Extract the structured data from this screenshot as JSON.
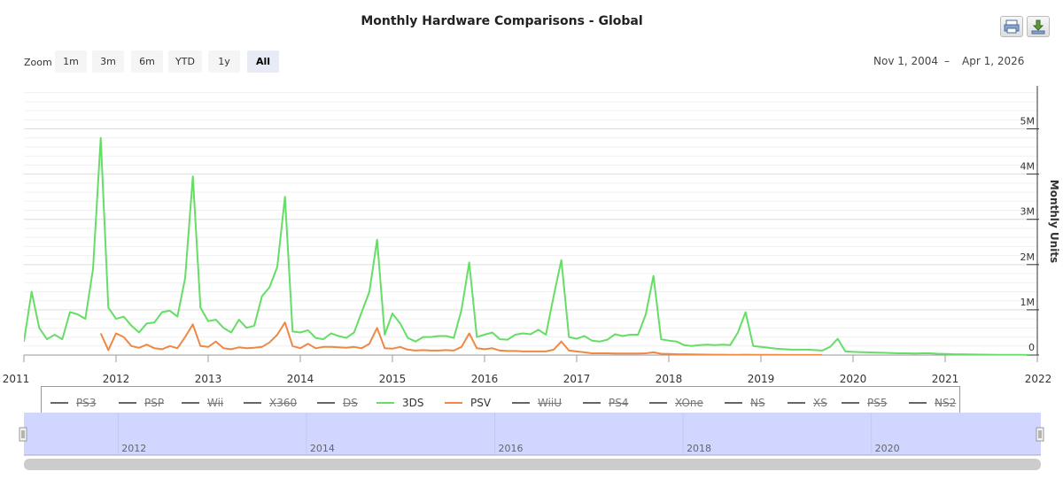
{
  "title": "Monthly Hardware Comparisons - Global",
  "zoom": {
    "label": "Zoom",
    "buttons": [
      "1m",
      "3m",
      "6m",
      "YTD",
      "1y",
      "All"
    ],
    "active": "All"
  },
  "range": {
    "from": "Nov 1, 2004",
    "separator": "–",
    "to": "Apr 1, 2026"
  },
  "export_icons": [
    "print-icon",
    "download-icon"
  ],
  "legend": [
    {
      "name": "PS3",
      "visible": false
    },
    {
      "name": "PSP",
      "visible": false
    },
    {
      "name": "Wii",
      "visible": false
    },
    {
      "name": "X360",
      "visible": false
    },
    {
      "name": "DS",
      "visible": false
    },
    {
      "name": "3DS",
      "visible": true
    },
    {
      "name": "PSV",
      "visible": true
    },
    {
      "name": "WiiU",
      "visible": false
    },
    {
      "name": "PS4",
      "visible": false
    },
    {
      "name": "XOne",
      "visible": false
    },
    {
      "name": "NS",
      "visible": false
    },
    {
      "name": "XS",
      "visible": false
    },
    {
      "name": "PS5",
      "visible": false
    },
    {
      "name": "NS2",
      "visible": false
    }
  ],
  "navigator": {
    "labels": [
      "2012",
      "2014",
      "2016",
      "2018",
      "2020"
    ]
  },
  "colors": {
    "3DS": "#66dd66",
    "PSV": "#ee8844",
    "hidden": "#666666",
    "navigator": "#d0d6ff"
  },
  "chart_data": {
    "type": "line",
    "ylabel": "Monthly Units",
    "y_ticks": [
      "0",
      "1M",
      "2M",
      "3M",
      "4M",
      "5M"
    ],
    "x_ticks": [
      "2011",
      "2012",
      "2013",
      "2014",
      "2015",
      "2016",
      "2017",
      "2018",
      "2019",
      "2020",
      "2021",
      "2022"
    ],
    "xlim": [
      2011.0,
      2022.0
    ],
    "ylim": [
      0,
      5000000
    ],
    "legend_position": "bottom",
    "series": [
      {
        "name": "3DS",
        "color": "#66dd66",
        "x_start": 2011.0,
        "step_months": 1,
        "values": [
          300000,
          1400000,
          600000,
          350000,
          450000,
          350000,
          950000,
          900000,
          800000,
          1900000,
          4800000,
          1050000,
          800000,
          850000,
          650000,
          500000,
          700000,
          720000,
          950000,
          980000,
          850000,
          1700000,
          3950000,
          1050000,
          750000,
          780000,
          600000,
          500000,
          780000,
          600000,
          650000,
          1300000,
          1500000,
          1950000,
          3500000,
          520000,
          500000,
          550000,
          380000,
          350000,
          480000,
          420000,
          380000,
          500000,
          950000,
          1400000,
          2550000,
          450000,
          920000,
          700000,
          380000,
          300000,
          400000,
          400000,
          420000,
          420000,
          380000,
          1000000,
          2050000,
          400000,
          450000,
          500000,
          350000,
          340000,
          450000,
          480000,
          460000,
          560000,
          450000,
          1300000,
          2100000,
          400000,
          360000,
          420000,
          320000,
          300000,
          340000,
          460000,
          420000,
          450000,
          450000,
          900000,
          1750000,
          350000,
          320000,
          300000,
          220000,
          200000,
          220000,
          230000,
          220000,
          230000,
          220000,
          500000,
          950000,
          200000,
          180000,
          160000,
          140000,
          130000,
          120000,
          120000,
          120000,
          110000,
          100000,
          180000,
          360000,
          80000,
          70000,
          65000,
          60000,
          55000,
          50000,
          45000,
          40000,
          40000,
          35000,
          40000,
          40000,
          30000,
          25000,
          20000,
          18000,
          15000,
          12000,
          10000,
          8000,
          6000,
          5000,
          4000,
          3000,
          2000
        ]
      },
      {
        "name": "PSV",
        "color": "#ee8844",
        "x_start": 2011.8333,
        "step_months": 1,
        "values": [
          480000,
          110000,
          480000,
          400000,
          200000,
          160000,
          230000,
          150000,
          130000,
          200000,
          150000,
          400000,
          680000,
          200000,
          180000,
          300000,
          150000,
          130000,
          170000,
          150000,
          160000,
          180000,
          280000,
          450000,
          720000,
          200000,
          150000,
          250000,
          150000,
          180000,
          180000,
          170000,
          160000,
          180000,
          150000,
          250000,
          600000,
          150000,
          140000,
          180000,
          120000,
          100000,
          110000,
          100000,
          100000,
          110000,
          100000,
          180000,
          480000,
          150000,
          130000,
          150000,
          100000,
          90000,
          90000,
          80000,
          80000,
          80000,
          80000,
          120000,
          300000,
          100000,
          80000,
          60000,
          40000,
          40000,
          40000,
          35000,
          35000,
          35000,
          35000,
          40000,
          60000,
          30000,
          25000,
          20000,
          18000,
          15000,
          12000,
          10000,
          8000,
          7000,
          6000,
          5000,
          8000,
          5000,
          4000,
          3000,
          3000,
          2000,
          2000,
          1500,
          1500,
          1000,
          1000
        ]
      }
    ]
  }
}
